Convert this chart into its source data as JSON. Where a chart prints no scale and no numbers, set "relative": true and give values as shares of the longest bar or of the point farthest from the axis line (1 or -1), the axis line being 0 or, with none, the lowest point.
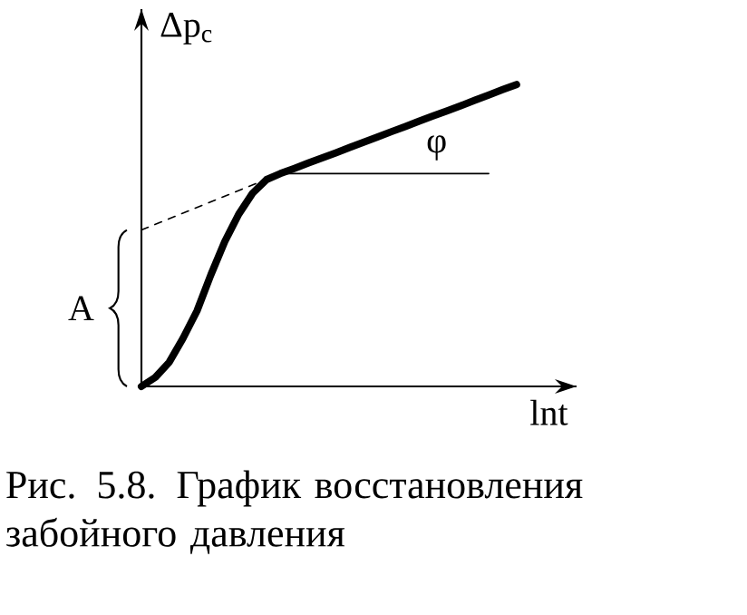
{
  "chart_data": {
    "type": "line",
    "relative": true,
    "xlabel": "lnt",
    "ylabel": "Δp$_{с}$",
    "categories": [
      null,
      null,
      null,
      null,
      null,
      null,
      null,
      null,
      null,
      null,
      null,
      null,
      null,
      null,
      null,
      null,
      null,
      null,
      null,
      null,
      null,
      null,
      null,
      null,
      null,
      null,
      null,
      null
    ],
    "series": [
      {
        "color": "#000000",
        "line_style": "solid",
        "values": [
          0,
          0.03,
          0.08,
          0.16,
          0.25,
          0.37,
          0.48,
          0.57,
          0.64,
          0.685,
          0.705,
          0.722,
          0.74,
          0.757,
          0.774,
          0.792,
          0.809,
          0.826,
          0.844,
          0.861,
          0.879,
          0.896,
          0.913,
          0.93,
          0.948,
          0.965,
          0.983,
          1
        ]
      },
      {
        "color": "#000000",
        "line_style": "dashed",
        "values": [
          0.518,
          null,
          null,
          null,
          null,
          null,
          null,
          null,
          null,
          null,
          0.705,
          null,
          null,
          null,
          null,
          null,
          null,
          null,
          null,
          null,
          null,
          null,
          null,
          null,
          null,
          null,
          null,
          null
        ]
      },
      {
        "color": "#000000",
        "line_style": "solid",
        "values": [
          null,
          null,
          null,
          null,
          null,
          null,
          null,
          null,
          null,
          null,
          0.705,
          null,
          null,
          null,
          null,
          null,
          null,
          null,
          null,
          null,
          null,
          null,
          null,
          null,
          null,
          0.705,
          null,
          null
        ]
      }
    ],
    "annotations": [
      "A",
      "φ",
      "Рис. 5.8. График восстановления забойного давления"
    ]
  }
}
